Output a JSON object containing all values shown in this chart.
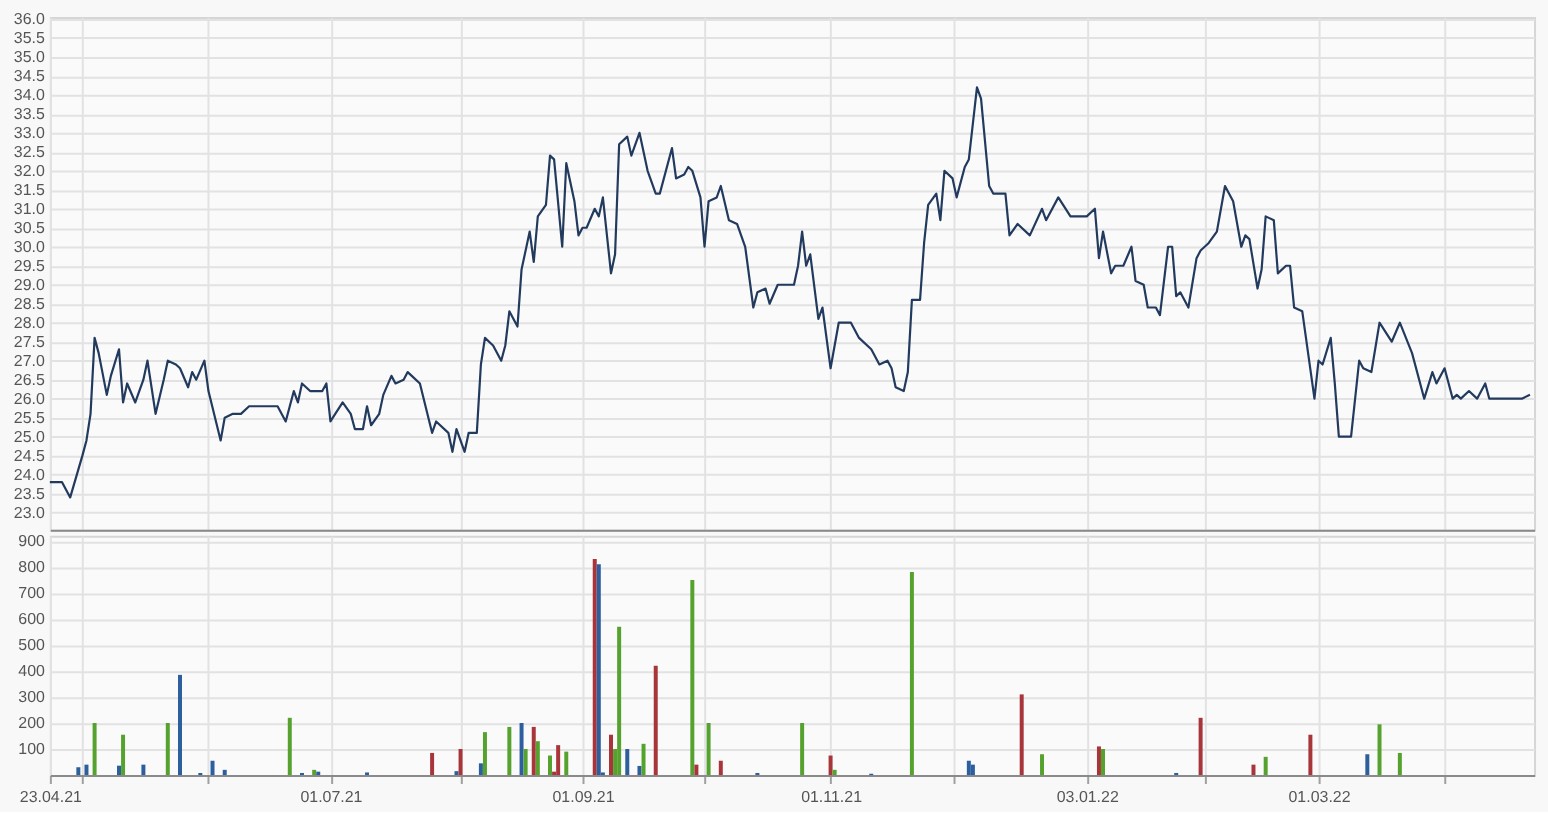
{
  "chart_data": [
    {
      "type": "line",
      "tick_labels": "y",
      "grid": true,
      "x": [
        "2021-04-23",
        "2021-04-26",
        "2021-04-28",
        "2021-05-01",
        "2021-05-02",
        "2021-05-03",
        "2021-05-04",
        "2021-05-05",
        "2021-05-07",
        "2021-05-08",
        "2021-05-10",
        "2021-05-11",
        "2021-05-12",
        "2021-05-14",
        "2021-05-16",
        "2021-05-17",
        "2021-05-19",
        "2021-05-21",
        "2021-05-22",
        "2021-05-24",
        "2021-05-25",
        "2021-05-27",
        "2021-05-28",
        "2021-05-29",
        "2021-05-31",
        "2021-06-01",
        "2021-06-04",
        "2021-06-05",
        "2021-06-07",
        "2021-06-09",
        "2021-06-11",
        "2021-06-18",
        "2021-06-20",
        "2021-06-22",
        "2021-06-23",
        "2021-06-24",
        "2021-06-26",
        "2021-06-29",
        "2021-06-30",
        "2021-07-01",
        "2021-07-04",
        "2021-07-06",
        "2021-07-07",
        "2021-07-09",
        "2021-07-10",
        "2021-07-11",
        "2021-07-13",
        "2021-07-14",
        "2021-07-16",
        "2021-07-17",
        "2021-07-19",
        "2021-07-20",
        "2021-07-21",
        "2021-07-23",
        "2021-07-26",
        "2021-07-27",
        "2021-07-30",
        "2021-07-31",
        "2021-08-01",
        "2021-08-03",
        "2021-08-04",
        "2021-08-06",
        "2021-08-07",
        "2021-08-08",
        "2021-08-10",
        "2021-08-12",
        "2021-08-13",
        "2021-08-14",
        "2021-08-16",
        "2021-08-17",
        "2021-08-19",
        "2021-08-20",
        "2021-08-21",
        "2021-08-23",
        "2021-08-24",
        "2021-08-25",
        "2021-08-27",
        "2021-08-28",
        "2021-08-30",
        "2021-08-31",
        "2021-09-01",
        "2021-09-02",
        "2021-09-04",
        "2021-09-05",
        "2021-09-06",
        "2021-09-08",
        "2021-09-09",
        "2021-09-10",
        "2021-09-12",
        "2021-09-13",
        "2021-09-15",
        "2021-09-17",
        "2021-09-19",
        "2021-09-20",
        "2021-09-23",
        "2021-09-24",
        "2021-09-26",
        "2021-09-27",
        "2021-09-28",
        "2021-09-30",
        "2021-10-01",
        "2021-10-02",
        "2021-10-04",
        "2021-10-05",
        "2021-10-07",
        "2021-10-09",
        "2021-10-10",
        "2021-10-11",
        "2021-10-13",
        "2021-10-14",
        "2021-10-16",
        "2021-10-17",
        "2021-10-19",
        "2021-10-23",
        "2021-10-24",
        "2021-10-25",
        "2021-10-26",
        "2021-10-27",
        "2021-10-29",
        "2021-10-30",
        "2021-11-01",
        "2021-11-03",
        "2021-11-06",
        "2021-11-08",
        "2021-11-11",
        "2021-11-13",
        "2021-11-15",
        "2021-11-16",
        "2021-11-17",
        "2021-11-19",
        "2021-11-20",
        "2021-11-21",
        "2021-11-23",
        "2021-11-24",
        "2021-11-25",
        "2021-11-27",
        "2021-11-28",
        "2021-11-29",
        "2021-12-01",
        "2021-12-02",
        "2021-12-04",
        "2021-12-05",
        "2021-12-07",
        "2021-12-08",
        "2021-12-10",
        "2021-12-11",
        "2021-12-14",
        "2021-12-15",
        "2021-12-17",
        "2021-12-20",
        "2021-12-23",
        "2021-12-24",
        "2021-12-27",
        "2021-12-30",
        "2022-01-03",
        "2022-01-05",
        "2022-01-06",
        "2022-01-07",
        "2022-01-09",
        "2022-01-10",
        "2022-01-12",
        "2022-01-14",
        "2022-01-15",
        "2022-01-17",
        "2022-01-18",
        "2022-01-20",
        "2022-01-21",
        "2022-01-23",
        "2022-01-24",
        "2022-01-25",
        "2022-01-26",
        "2022-01-28",
        "2022-01-30",
        "2022-01-31",
        "2022-02-02",
        "2022-02-04",
        "2022-02-06",
        "2022-02-08",
        "2022-02-10",
        "2022-02-11",
        "2022-02-12",
        "2022-02-14",
        "2022-02-15",
        "2022-02-16",
        "2022-02-18",
        "2022-02-19",
        "2022-02-21",
        "2022-02-22",
        "2022-02-23",
        "2022-02-25",
        "2022-02-28",
        "2022-03-01",
        "2022-03-02",
        "2022-03-04",
        "2022-03-05",
        "2022-03-06",
        "2022-03-09",
        "2022-03-11",
        "2022-03-12",
        "2022-03-14",
        "2022-03-16",
        "2022-03-19",
        "2022-03-21",
        "2022-03-24",
        "2022-03-27",
        "2022-03-29",
        "2022-03-30",
        "2022-04-01",
        "2022-04-03",
        "2022-04-04",
        "2022-04-05",
        "2022-04-07",
        "2022-04-09",
        "2022-04-11",
        "2022-04-12",
        "2022-04-20",
        "2022-04-22"
      ],
      "series": [
        {
          "color": "#223a5e",
          "values": [
            23.8,
            23.8,
            23.4,
            24.5,
            24.9,
            25.6,
            27.6,
            27.2,
            26.1,
            26.6,
            27.3,
            25.9,
            26.4,
            25.9,
            26.5,
            27.0,
            25.6,
            26.5,
            27.0,
            26.9,
            26.8,
            26.3,
            26.7,
            26.5,
            27.0,
            26.2,
            24.9,
            25.5,
            25.6,
            25.6,
            25.8,
            25.8,
            25.4,
            26.2,
            25.9,
            26.4,
            26.2,
            26.2,
            26.4,
            25.4,
            25.9,
            25.6,
            25.2,
            25.2,
            25.8,
            25.3,
            25.6,
            26.1,
            26.6,
            26.4,
            26.5,
            26.7,
            26.6,
            26.4,
            25.1,
            25.4,
            25.1,
            24.6,
            25.2,
            24.6,
            25.1,
            25.1,
            26.9,
            27.6,
            27.4,
            27.0,
            27.4,
            28.3,
            27.9,
            29.4,
            30.4,
            29.6,
            30.8,
            31.1,
            32.4,
            32.3,
            30.0,
            32.2,
            31.2,
            30.3,
            30.5,
            30.5,
            31.0,
            30.8,
            31.3,
            29.3,
            29.8,
            32.7,
            32.9,
            32.4,
            33.0,
            32.0,
            31.4,
            31.4,
            32.6,
            31.8,
            31.9,
            32.1,
            32.0,
            31.3,
            30.0,
            31.2,
            31.3,
            31.6,
            30.7,
            30.6,
            30.3,
            30.0,
            28.4,
            28.8,
            28.9,
            28.5,
            29.0,
            29.0,
            29.5,
            30.4,
            29.5,
            29.8,
            28.1,
            28.4,
            26.8,
            28.0,
            28.0,
            27.6,
            27.3,
            26.9,
            27.0,
            26.8,
            26.3,
            26.2,
            26.7,
            28.6,
            28.6,
            30.1,
            31.1,
            31.4,
            30.7,
            32.0,
            31.8,
            31.3,
            32.1,
            32.3,
            34.2,
            33.9,
            31.6,
            31.4,
            31.4,
            30.3,
            30.6,
            30.3,
            31.0,
            30.7,
            31.3,
            30.8,
            30.8,
            31.0,
            29.7,
            30.4,
            29.3,
            29.5,
            29.5,
            30.0,
            29.1,
            29.0,
            28.4,
            28.4,
            28.2,
            30.0,
            30.0,
            28.7,
            28.8,
            28.4,
            29.7,
            29.9,
            30.1,
            30.4,
            31.6,
            31.2,
            30.0,
            30.3,
            30.2,
            28.9,
            29.4,
            30.8,
            30.7,
            29.3,
            29.5,
            29.5,
            28.4,
            28.3,
            26.0,
            27.0,
            26.9,
            27.6,
            26.4,
            25.0,
            25.0,
            27.0,
            26.8,
            26.7,
            28.0,
            27.5,
            28.0,
            27.2,
            26.0,
            26.7,
            26.4,
            26.8,
            26.0,
            26.1,
            26.0,
            26.2,
            26.0,
            26.4,
            26.0,
            26.0,
            26.1
          ]
        }
      ],
      "xlim": [
        "2021-04-23",
        "2022-04-23"
      ],
      "xticks": [
        "2021-04-23",
        "2021-05-01",
        "2021-06-01",
        "2021-07-01",
        "2021-08-02",
        "2021-09-01",
        "2021-10-01",
        "2021-11-01",
        "2021-12-01",
        "2022-01-03",
        "2022-02-01",
        "2022-03-01",
        "2022-04-01"
      ],
      "ylim": [
        22.55,
        36.05
      ],
      "yticks": [
        {
          "value": 23,
          "label": "23.0"
        },
        {
          "value": 23.5,
          "label": "23.5"
        },
        {
          "value": 24,
          "label": "24.0"
        },
        {
          "value": 24.5,
          "label": "24.5"
        },
        {
          "value": 25,
          "label": "25.0"
        },
        {
          "value": 25.5,
          "label": "25.5"
        },
        {
          "value": 26,
          "label": "26.0"
        },
        {
          "value": 26.5,
          "label": "26.5"
        },
        {
          "value": 27,
          "label": "27.0"
        },
        {
          "value": 27.5,
          "label": "27.5"
        },
        {
          "value": 28,
          "label": "28.0"
        },
        {
          "value": 28.5,
          "label": "28.5"
        },
        {
          "value": 29,
          "label": "29.0"
        },
        {
          "value": 29.5,
          "label": "29.5"
        },
        {
          "value": 30,
          "label": "30.0"
        },
        {
          "value": 30.5,
          "label": "30.5"
        },
        {
          "value": 31,
          "label": "31.0"
        },
        {
          "value": 31.5,
          "label": "31.5"
        },
        {
          "value": 32,
          "label": "32.0"
        },
        {
          "value": 32.5,
          "label": "32.5"
        },
        {
          "value": 33,
          "label": "33.0"
        },
        {
          "value": 33.5,
          "label": "33.5"
        },
        {
          "value": 34,
          "label": "34.0"
        },
        {
          "value": 34.5,
          "label": "34.5"
        },
        {
          "value": 35,
          "label": "35.0"
        },
        {
          "value": 35.5,
          "label": "35.5"
        },
        {
          "value": 36,
          "label": "36.0"
        }
      ]
    },
    {
      "type": "bar",
      "grid": true,
      "x": [
        "2021-04-30",
        "2021-05-02",
        "2021-05-04",
        "2021-05-10",
        "2021-05-11",
        "2021-05-16",
        "2021-05-22",
        "2021-05-25",
        "2021-05-30",
        "2021-06-02",
        "2021-06-05",
        "2021-06-21",
        "2021-06-24",
        "2021-06-27",
        "2021-06-28",
        "2021-07-10",
        "2021-07-26",
        "2021-08-01",
        "2021-08-02",
        "2021-08-07",
        "2021-08-08",
        "2021-08-14",
        "2021-08-17",
        "2021-08-18",
        "2021-08-20",
        "2021-08-21",
        "2021-08-24",
        "2021-08-25",
        "2021-08-26",
        "2021-08-28",
        "2021-09-04",
        "2021-09-05",
        "2021-09-06",
        "2021-09-08",
        "2021-09-09",
        "2021-09-10",
        "2021-09-12",
        "2021-09-15",
        "2021-09-16",
        "2021-09-19",
        "2021-09-28",
        "2021-09-29",
        "2021-10-02",
        "2021-10-05",
        "2021-10-14",
        "2021-10-25",
        "2021-11-01",
        "2021-11-02",
        "2021-11-11",
        "2021-11-21",
        "2021-12-05",
        "2021-12-06",
        "2021-12-18",
        "2021-12-23",
        "2022-01-06",
        "2022-01-07",
        "2022-01-25",
        "2022-01-31",
        "2022-02-13",
        "2022-02-16",
        "2022-02-27",
        "2022-03-13",
        "2022-03-16",
        "2022-03-21"
      ],
      "values": [
        30,
        40,
        200,
        36,
        155,
        40,
        200,
        385,
        8,
        55,
        20,
        220,
        8,
        20,
        13,
        10,
        85,
        15,
        100,
        45,
        165,
        185,
        200,
        100,
        185,
        130,
        75,
        13,
        115,
        90,
        830,
        810,
        10,
        155,
        100,
        570,
        100,
        35,
        120,
        420,
        750,
        40,
        200,
        55,
        8,
        200,
        75,
        20,
        5,
        780,
        55,
        40,
        310,
        80,
        110,
        100,
        8,
        220,
        40,
        70,
        155,
        80,
        195,
        85
      ],
      "colors": [
        "#2d5f9e",
        "#2d5f9e",
        "#56a22e",
        "#2d5f9e",
        "#56a22e",
        "#2d5f9e",
        "#56a22e",
        "#2d5f9e",
        "#2d5f9e",
        "#2d5f9e",
        "#2d5f9e",
        "#56a22e",
        "#2d5f9e",
        "#56a22e",
        "#2d5f9e",
        "#2d5f9e",
        "#a8353a",
        "#2d5f9e",
        "#a8353a",
        "#2d5f9e",
        "#56a22e",
        "#56a22e",
        "#2d5f9e",
        "#56a22e",
        "#a8353a",
        "#56a22e",
        "#56a22e",
        "#a8353a",
        "#a8353a",
        "#56a22e",
        "#a8353a",
        "#2d5f9e",
        "#2d5f9e",
        "#a8353a",
        "#56a22e",
        "#56a22e",
        "#2d5f9e",
        "#2d5f9e",
        "#56a22e",
        "#a8353a",
        "#56a22e",
        "#a8353a",
        "#56a22e",
        "#a8353a",
        "#2d5f9e",
        "#56a22e",
        "#a8353a",
        "#56a22e",
        "#2d5f9e",
        "#56a22e",
        "#2d5f9e",
        "#2d5f9e",
        "#a8353a",
        "#56a22e",
        "#a8353a",
        "#56a22e",
        "#2d5f9e",
        "#a8353a",
        "#a8353a",
        "#56a22e",
        "#a8353a",
        "#2d5f9e",
        "#56a22e",
        "#56a22e"
      ],
      "xlim": [
        "2021-04-23",
        "2022-04-23"
      ],
      "xticks": [
        {
          "value": "2021-04-23",
          "label": "23.04.21"
        },
        {
          "value": "2021-05-01",
          "label": null
        },
        {
          "value": "2021-06-01",
          "label": null
        },
        {
          "value": "2021-07-01",
          "label": "01.07.21"
        },
        {
          "value": "2021-08-02",
          "label": null
        },
        {
          "value": "2021-09-01",
          "label": "01.09.21"
        },
        {
          "value": "2021-10-01",
          "label": null
        },
        {
          "value": "2021-11-01",
          "label": "01.11.21"
        },
        {
          "value": "2021-12-01",
          "label": null
        },
        {
          "value": "2022-01-03",
          "label": "03.01.22"
        },
        {
          "value": "2022-02-01",
          "label": null
        },
        {
          "value": "2022-03-01",
          "label": "01.03.22"
        },
        {
          "value": "2022-04-01",
          "label": null
        }
      ],
      "ylim": [
        0,
        920
      ],
      "yticks": [
        100,
        200,
        300,
        400,
        500,
        600,
        700,
        800,
        900
      ]
    }
  ]
}
